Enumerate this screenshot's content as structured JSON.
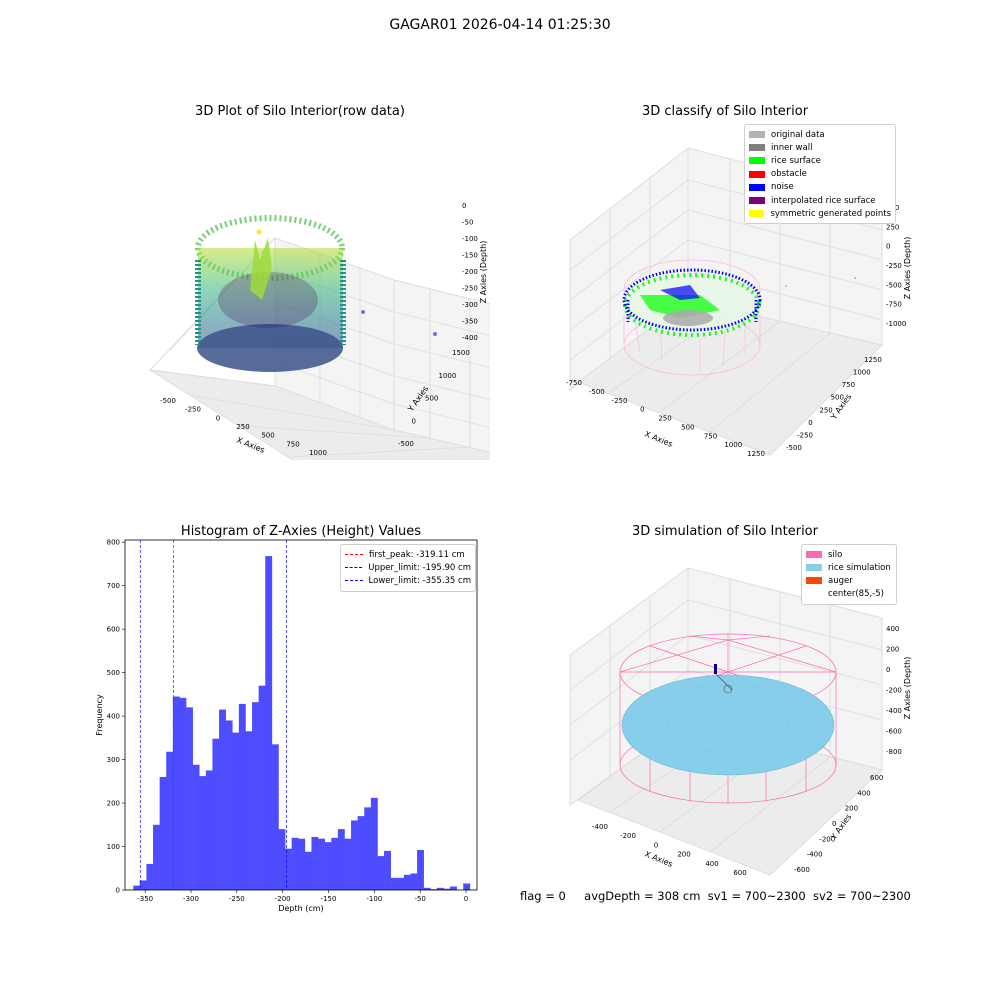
{
  "suptitle": "GAGAR01 2026-04-14 01:25:30",
  "panels": {
    "raw": {
      "title": "3D Plot of Silo Interior(row data)",
      "xlabel": "X Axies",
      "ylabel": "Y Axies",
      "zlabel": "Z Axies (Depth)",
      "xticks": [
        "-500",
        "-250",
        "0",
        "250",
        "500",
        "750",
        "1000"
      ],
      "yticks": [
        "-500",
        "0",
        "500",
        "1000",
        "1500"
      ],
      "zticks": [
        "0",
        "-50",
        "-100",
        "-150",
        "-200",
        "-250",
        "-300",
        "-350",
        "-400"
      ]
    },
    "classify": {
      "title": "3D classify of Silo Interior",
      "xlabel": "X Axies",
      "ylabel": "Y Axies",
      "zlabel": "Z Axies (Depth)",
      "xticks": [
        "-750",
        "-500",
        "-250",
        "0",
        "250",
        "500",
        "750",
        "1000",
        "1250"
      ],
      "yticks": [
        "-500",
        "-250",
        "0",
        "250",
        "500",
        "750",
        "1000",
        "1250"
      ],
      "zticks": [
        "500",
        "250",
        "0",
        "-250",
        "-500",
        "-750",
        "-1000"
      ],
      "legend": [
        {
          "label": "original data",
          "color": "#b3b3b3"
        },
        {
          "label": "inner wall",
          "color": "#808080"
        },
        {
          "label": "rice surface",
          "color": "#00ff00"
        },
        {
          "label": "obstacle",
          "color": "#ff0000"
        },
        {
          "label": "noise",
          "color": "#0000ff"
        },
        {
          "label": "interpolated rice surface",
          "color": "#800080"
        },
        {
          "label": "symmetric generated points",
          "color": "#ffff00"
        }
      ]
    },
    "histogram": {
      "title": "Histogram of Z-Axies (Height) Values",
      "legend": [
        {
          "label": "first_peak: -319.11 cm",
          "color": "#ff0000"
        },
        {
          "label": "Upper_limit: -195.90 cm",
          "color": "#0000ff"
        },
        {
          "label": "Lower_limit: -355.35 cm",
          "color": "#0000ff"
        }
      ]
    },
    "simulation": {
      "title": "3D simulation of Silo Interior",
      "xlabel": "X Axies",
      "ylabel": "Y Axies",
      "zlabel": "Z Axies (Depth)",
      "xticks": [
        "-400",
        "-200",
        "0",
        "200",
        "400",
        "600"
      ],
      "yticks": [
        "-600",
        "-400",
        "-200",
        "0",
        "200",
        "400",
        "600"
      ],
      "zticks": [
        "400",
        "200",
        "0",
        "-200",
        "-400",
        "-600",
        "-800"
      ],
      "legend": [
        {
          "label": "silo",
          "color": "#ff69b4"
        },
        {
          "label": "rice simulation",
          "color": "#87ceeb"
        },
        {
          "label": "auger",
          "color": "#ff4500"
        },
        {
          "label": "center(85,-5)",
          "color": "#ffffff"
        }
      ]
    }
  },
  "chart_data": {
    "type": "bar",
    "title": "Histogram of Z-Axies (Height) Values",
    "xlabel": "Depth (cm)",
    "ylabel": "Frequency",
    "xlim": [
      -372,
      12
    ],
    "ylim": [
      0,
      805
    ],
    "xticks": [
      -350,
      -300,
      -250,
      -200,
      -150,
      -100,
      -50,
      0
    ],
    "yticks": [
      0,
      100,
      200,
      300,
      400,
      500,
      600,
      700,
      800
    ],
    "bin_width": 7.2,
    "bin_starts": [
      -363,
      -355.8,
      -348.6,
      -341.4,
      -334.2,
      -327,
      -319.8,
      -312.6,
      -305.4,
      -298.2,
      -291,
      -283.8,
      -276.6,
      -269.4,
      -262.2,
      -255,
      -247.8,
      -240.6,
      -233.4,
      -226.2,
      -219,
      -211.8,
      -204.6,
      -197.4,
      -190.2,
      -183,
      -175.8,
      -168.6,
      -161.4,
      -154.2,
      -147,
      -139.8,
      -132.6,
      -125.4,
      -118.2,
      -111,
      -103.8,
      -96.6,
      -89.4,
      -82.2,
      -75,
      -67.8,
      -60.6,
      -53.4,
      -46.2,
      -39,
      -31.8,
      -24.6,
      -17.4,
      -10.2,
      -3
    ],
    "values": [
      10,
      22,
      60,
      150,
      260,
      318,
      445,
      442,
      420,
      288,
      262,
      275,
      348,
      415,
      390,
      362,
      428,
      365,
      432,
      470,
      768,
      335,
      140,
      95,
      120,
      118,
      88,
      122,
      118,
      110,
      120,
      140,
      118,
      160,
      170,
      190,
      212,
      78,
      90,
      28,
      28,
      35,
      38,
      92,
      5,
      2,
      5,
      3,
      8,
      0,
      15
    ],
    "vlines": [
      {
        "name": "first_peak",
        "x": -319.11,
        "color": "#ff0000"
      },
      {
        "name": "Upper_limit",
        "x": -195.9,
        "color": "#0000ff"
      },
      {
        "name": "Lower_limit",
        "x": -355.35,
        "color": "#0000ff"
      }
    ],
    "bar_color": "#4d4dff",
    "grid": false,
    "legend_position": "top-right"
  },
  "status": {
    "flag": "flag = 0",
    "avg": "avgDepth = 308 cm",
    "sv1": "sv1 = 700~2300",
    "sv2": "sv2 = 700~2300"
  }
}
